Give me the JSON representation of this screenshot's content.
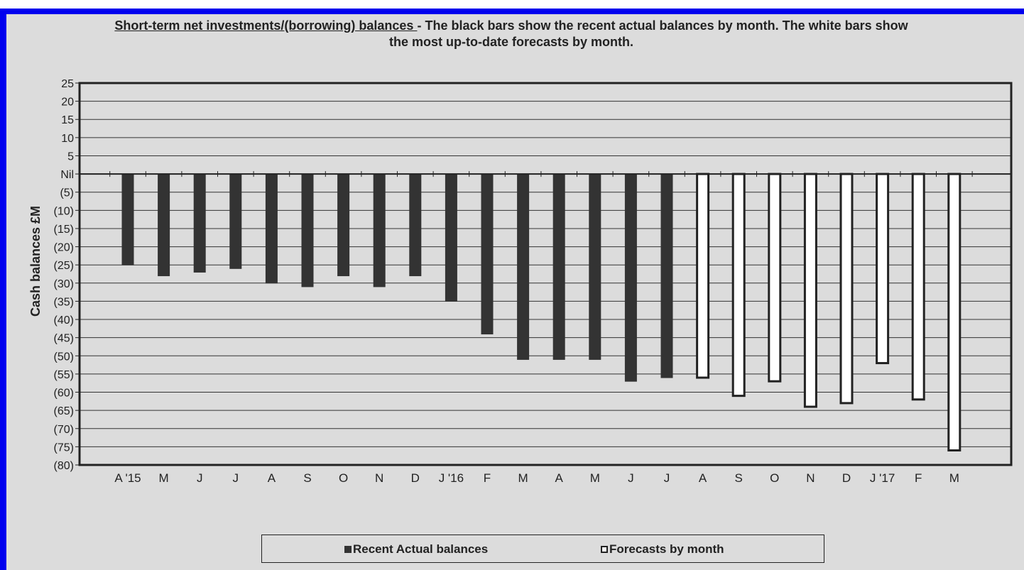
{
  "colors": {
    "frame": "#0000ee",
    "panel": "#dcdcdc",
    "actual_fill": "#333333",
    "forecast_fill": "#ffffff",
    "outline": "#222222"
  },
  "title": {
    "underlined": "Short-term net investments/(borrowing) balances ",
    "rest": "- The black bars show the recent actual balances by month. The white bars show the most up-to-date forecasts by month."
  },
  "legend": {
    "actual": "Recent Actual balances",
    "forecast": "Forecasts by month"
  },
  "chart_data": {
    "type": "bar",
    "ylabel": "Cash balances £M",
    "ylim": [
      -80,
      25
    ],
    "y_ticks": [
      {
        "value": 25,
        "label": "25"
      },
      {
        "value": 20,
        "label": "20"
      },
      {
        "value": 15,
        "label": "15"
      },
      {
        "value": 10,
        "label": "10"
      },
      {
        "value": 5,
        "label": "5"
      },
      {
        "value": 0,
        "label": "Nil"
      },
      {
        "value": -5,
        "label": "(5)"
      },
      {
        "value": -10,
        "label": "(10)"
      },
      {
        "value": -15,
        "label": "(15)"
      },
      {
        "value": -20,
        "label": "(20)"
      },
      {
        "value": -25,
        "label": "(25)"
      },
      {
        "value": -30,
        "label": "(30)"
      },
      {
        "value": -35,
        "label": "(35)"
      },
      {
        "value": -40,
        "label": "(40)"
      },
      {
        "value": -45,
        "label": "(45)"
      },
      {
        "value": -50,
        "label": "(50)"
      },
      {
        "value": -55,
        "label": "(55)"
      },
      {
        "value": -60,
        "label": "(60)"
      },
      {
        "value": -65,
        "label": "(65)"
      },
      {
        "value": -70,
        "label": "(70)"
      },
      {
        "value": -75,
        "label": "(75)"
      },
      {
        "value": -80,
        "label": "(80)"
      }
    ],
    "categories": [
      "A '15",
      "M",
      "J",
      "J",
      "A",
      "S",
      "O",
      "N",
      "D",
      "J '16",
      "F",
      "M",
      "A",
      "M",
      "J",
      "J",
      "A",
      "S",
      "O",
      "N",
      "D",
      "J '17",
      "F",
      "M"
    ],
    "series": [
      {
        "name": "Recent Actual balances",
        "values": [
          -25,
          -28,
          -27,
          -26,
          -30,
          -31,
          -28,
          -31,
          -28,
          -35,
          -44,
          -51,
          -51,
          -51,
          -57,
          -56,
          null,
          null,
          null,
          null,
          null,
          null,
          null,
          null
        ]
      },
      {
        "name": "Forecasts by month",
        "values": [
          null,
          null,
          null,
          null,
          null,
          null,
          null,
          null,
          null,
          null,
          null,
          null,
          null,
          null,
          null,
          null,
          -56,
          -61,
          -57,
          -64,
          -63,
          -52,
          -62,
          -76
        ]
      }
    ],
    "grid": true,
    "legend_position": "bottom"
  }
}
